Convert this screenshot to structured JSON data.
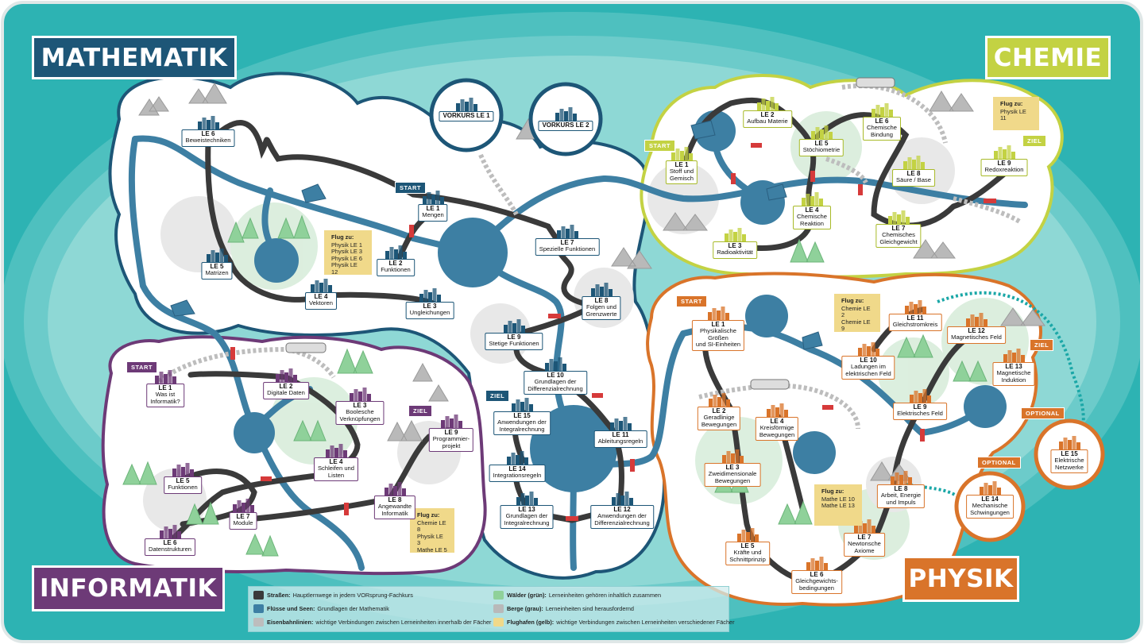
{
  "subjects": {
    "mathematik": "MATHEMATIK",
    "chemie": "CHEMIE",
    "informatik": "INFORMATIK",
    "physik": "PHYSIK"
  },
  "colors": {
    "frame": "#2db3b3",
    "mathematik": "#1d5677",
    "chemie": "#c3d243",
    "informatik": "#6d3a77",
    "physik": "#d9742a",
    "water": "#3d7fa3",
    "forest": "#9fd3a0",
    "mountain": "#b9b9b9",
    "flug": "#f0d98a"
  },
  "tags": {
    "start": "START",
    "ziel": "ZIEL",
    "optional": "OPTIONAL"
  },
  "vorkurs": [
    {
      "id": "vk1",
      "label": "VORKURS LE 1"
    },
    {
      "id": "vk2",
      "label": "VORKURS LE 2"
    }
  ],
  "mathematik_nodes": [
    {
      "le": "LE 6",
      "text": [
        "Beweistechniken"
      ]
    },
    {
      "le": "LE 1",
      "text": [
        "Mengen"
      ]
    },
    {
      "le": "LE 2",
      "text": [
        "Funktionen"
      ]
    },
    {
      "le": "LE 3",
      "text": [
        "Ungleichungen"
      ]
    },
    {
      "le": "LE 4",
      "text": [
        "Vektoren"
      ]
    },
    {
      "le": "LE 5",
      "text": [
        "Matrizen"
      ]
    },
    {
      "le": "LE 7",
      "text": [
        "Spezielle Funktionen"
      ]
    },
    {
      "le": "LE 8",
      "text": [
        "Folgen und",
        "Grenzwerte"
      ]
    },
    {
      "le": "LE 9",
      "text": [
        "Stetige Funktionen"
      ]
    },
    {
      "le": "LE 10",
      "text": [
        "Grundlagen der",
        "Differenzialrechnung"
      ]
    },
    {
      "le": "LE 11",
      "text": [
        "Ableitungsregeln"
      ]
    },
    {
      "le": "LE 12",
      "text": [
        "Anwendungen der",
        "Differenzialrechnung"
      ]
    },
    {
      "le": "LE 13",
      "text": [
        "Grundlagen der",
        "Integralrechnung"
      ]
    },
    {
      "le": "LE 14",
      "text": [
        "Integrationsregeln"
      ]
    },
    {
      "le": "LE 15",
      "text": [
        "Anwendungen der",
        "Integralrechnung"
      ]
    }
  ],
  "chemie_nodes": [
    {
      "le": "LE 1",
      "text": [
        "Stoff und",
        "Gemisch"
      ]
    },
    {
      "le": "LE 2",
      "text": [
        "Aufbau Materie"
      ]
    },
    {
      "le": "LE 3",
      "text": [
        "Radioaktivität"
      ]
    },
    {
      "le": "LE 4",
      "text": [
        "Chemische",
        "Reaktion"
      ]
    },
    {
      "le": "LE 5",
      "text": [
        "Stöchiometrie"
      ]
    },
    {
      "le": "LE 6",
      "text": [
        "Chemische",
        "Bindung"
      ]
    },
    {
      "le": "LE 7",
      "text": [
        "Chemisches",
        "Gleichgewicht"
      ]
    },
    {
      "le": "LE 8",
      "text": [
        "Säure / Base"
      ]
    },
    {
      "le": "LE 9",
      "text": [
        "Redoxreaktion"
      ]
    }
  ],
  "informatik_nodes": [
    {
      "le": "LE 1",
      "text": [
        "Was ist",
        "Informatik?"
      ]
    },
    {
      "le": "LE 2",
      "text": [
        "Digitale Daten"
      ]
    },
    {
      "le": "LE 3",
      "text": [
        "Boolesche",
        "Verknüpfungen"
      ]
    },
    {
      "le": "LE 4",
      "text": [
        "Schleifen und",
        "Listen"
      ]
    },
    {
      "le": "LE 5",
      "text": [
        "Funktionen"
      ]
    },
    {
      "le": "LE 6",
      "text": [
        "Datenstrukturen"
      ]
    },
    {
      "le": "LE 7",
      "text": [
        "Module"
      ]
    },
    {
      "le": "LE 8",
      "text": [
        "Angewandte",
        "Informatik"
      ]
    },
    {
      "le": "LE 9",
      "text": [
        "Programmier-",
        "projekt"
      ]
    }
  ],
  "physik_nodes": [
    {
      "le": "LE 1",
      "text": [
        "Physikalische",
        "Größen",
        "und SI-Einheiten"
      ]
    },
    {
      "le": "LE 2",
      "text": [
        "Geradlinige",
        "Bewegungen"
      ]
    },
    {
      "le": "LE 3",
      "text": [
        "Zweidimensionale",
        "Bewegungen"
      ]
    },
    {
      "le": "LE 4",
      "text": [
        "Kreisförmige",
        "Bewegungen"
      ]
    },
    {
      "le": "LE 5",
      "text": [
        "Kräfte und",
        "Schnittprinzip"
      ]
    },
    {
      "le": "LE 6",
      "text": [
        "Gleichgewichts-",
        "bedingungen"
      ]
    },
    {
      "le": "LE 7",
      "text": [
        "Newtonsche",
        "Axiome"
      ]
    },
    {
      "le": "LE 8",
      "text": [
        "Arbeit, Energie",
        "und Impuls"
      ]
    },
    {
      "le": "LE 9",
      "text": [
        "Elektrisches Feld"
      ]
    },
    {
      "le": "LE 10",
      "text": [
        "Ladungen im",
        "elektrischen Feld"
      ]
    },
    {
      "le": "LE 11",
      "text": [
        "Gleichstromkreis"
      ]
    },
    {
      "le": "LE 12",
      "text": [
        "Magnetisches Feld"
      ]
    },
    {
      "le": "LE 13",
      "text": [
        "Magnetische",
        "Induktion"
      ]
    },
    {
      "le": "LE 14",
      "text": [
        "Mechanische",
        "Schwingungen"
      ]
    },
    {
      "le": "LE 15",
      "text": [
        "Elektrische",
        "Netzwerke"
      ]
    }
  ],
  "flug": [
    {
      "title": "Flug zu:",
      "lines": [
        "Physik LE 1",
        "Physik LE 3",
        "Physik LE 6",
        "Physik LE 12"
      ]
    },
    {
      "title": "Flug zu:",
      "lines": [
        "Physik LE 11"
      ]
    },
    {
      "title": "Flug zu:",
      "lines": [
        "Chemie LE 2",
        "Chemie LE 9"
      ]
    },
    {
      "title": "Flug zu:",
      "lines": [
        "Mathe LE 10",
        "Mathe LE 13"
      ]
    },
    {
      "title": "Flug zu:",
      "lines": [
        "Chemie LE 8",
        "Physik LE 3",
        "Mathe LE 5"
      ]
    }
  ],
  "legend": [
    {
      "icon": "road-icon",
      "bold": "Straßen:",
      "text": "Hauptlernwege in jedem VORsprung-Fachkurs"
    },
    {
      "icon": "river-icon",
      "bold": "Flüsse und Seen:",
      "text": "Grundlagen der Mathematik"
    },
    {
      "icon": "rail-icon",
      "bold": "Eisenbahnlinien:",
      "text": "wichtige Verbindungen zwischen Lerneinheiten innerhalb der Fächer"
    },
    {
      "icon": "forest-icon",
      "bold": "Wälder (grün):",
      "text": "Lerneinheiten gehören inhaltlich zusammen"
    },
    {
      "icon": "mountain-icon",
      "bold": "Berge (grau):",
      "text": "Lerneinheiten sind herausfordernd"
    },
    {
      "icon": "airport-icon",
      "bold": "Flughafen (gelb):",
      "text": "wichtige Verbindungen zwischen Lerneinheiten verschiedener Fächer"
    }
  ]
}
